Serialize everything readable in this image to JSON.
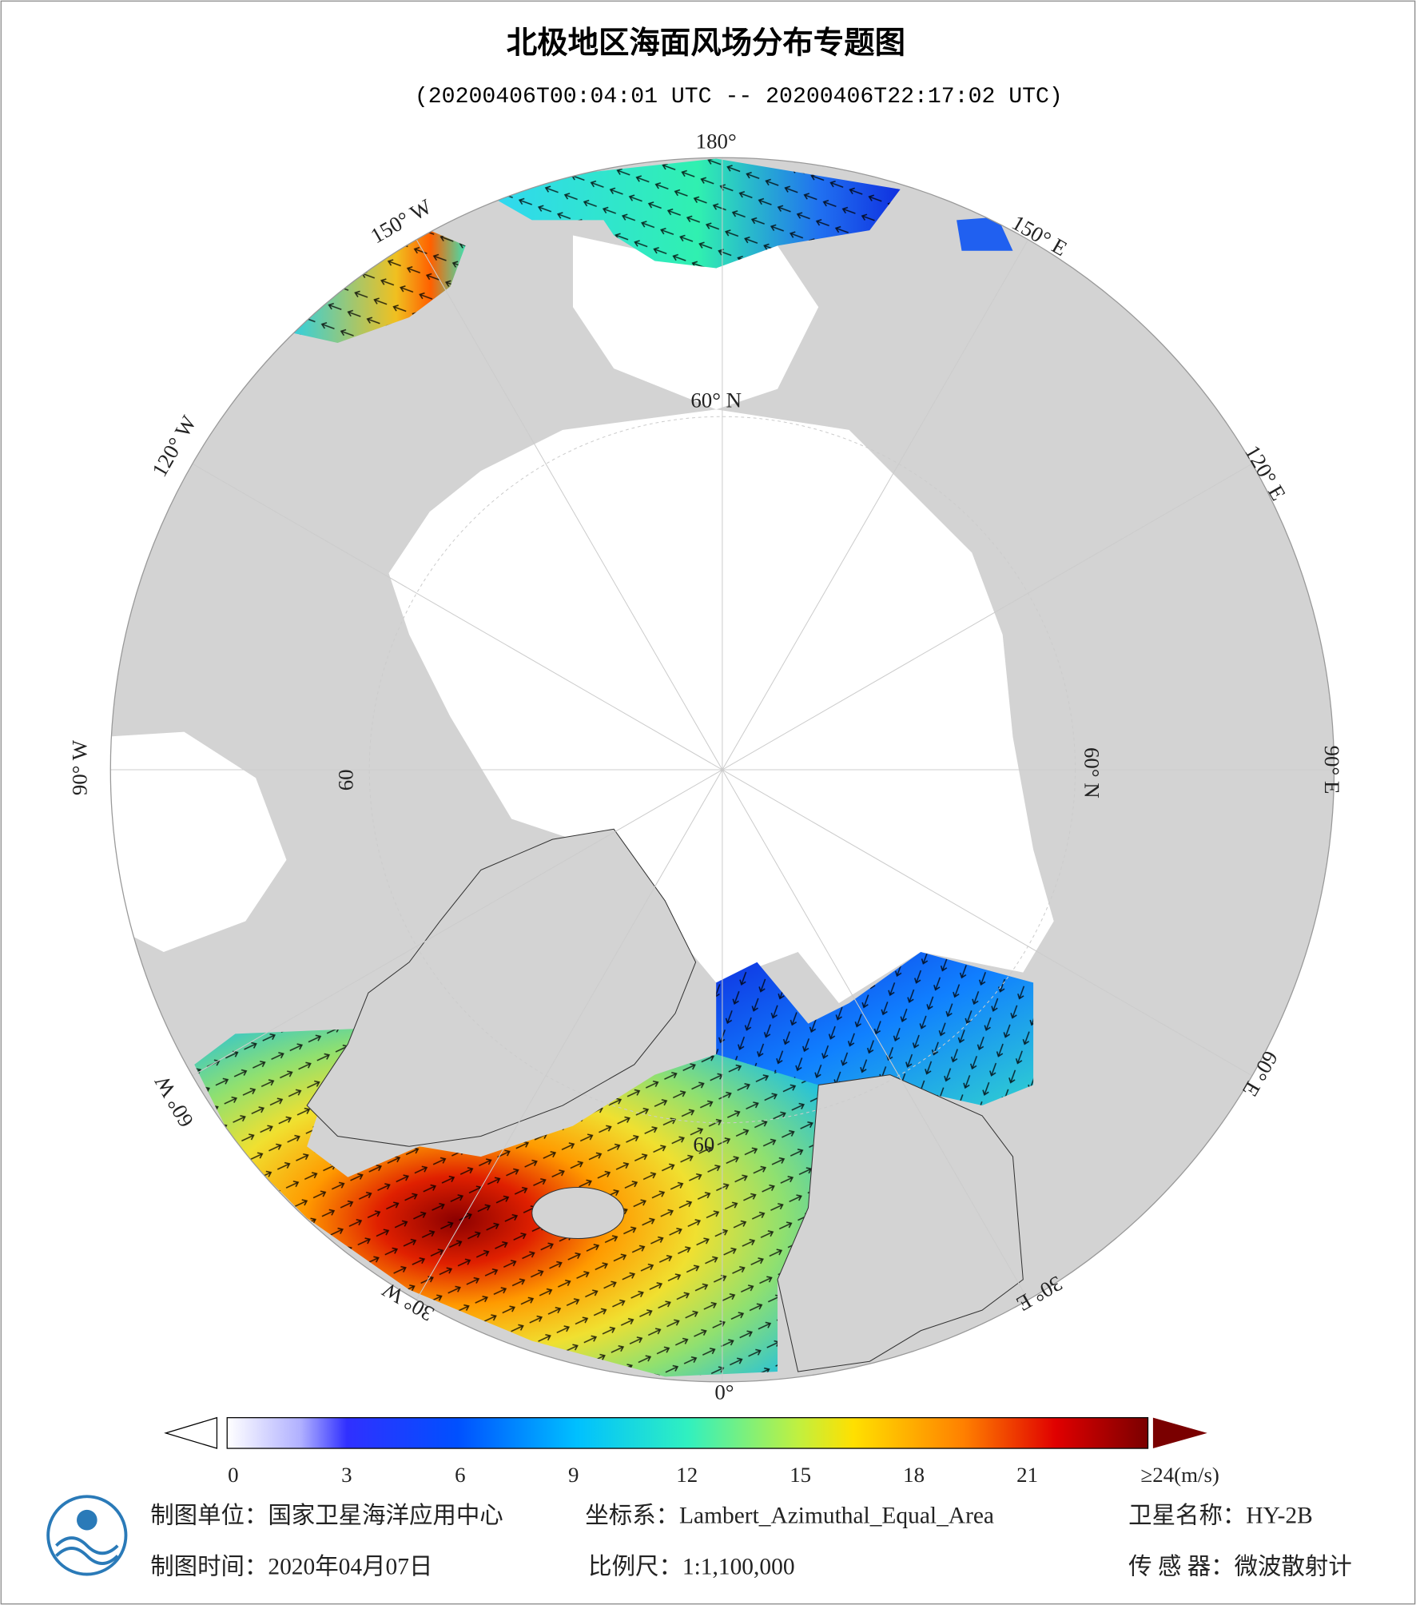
{
  "header": {
    "title": "北极地区海面风场分布专题图",
    "subtitle": "(20200406T00:04:01 UTC -- 20200406T22:17:02 UTC)"
  },
  "graticule": {
    "longitude_labels": [
      "180°",
      "150° E",
      "120° E",
      "90° E",
      "60° E",
      "30° E",
      "0°",
      "30° W",
      "60° W",
      "90° W",
      "120° W",
      "150° W"
    ],
    "latitude_labels": [
      "60° N",
      "60° N",
      "60",
      "60"
    ]
  },
  "colorbar": {
    "range": [
      0,
      24
    ],
    "ticks": [
      0,
      3,
      6,
      9,
      12,
      15,
      18,
      21,
      {
        "value": 24,
        "label": "≥24(m/s)"
      }
    ]
  },
  "footer": {
    "unit": "制图单位：国家卫星海洋应用中心",
    "coordinate_system": "坐标系：Lambert_Azimuthal_Equal_Area",
    "satellite": "卫星名称：HY-2B",
    "date": "制图时间：2020年04月07日",
    "scale": "比例尺：1:1,100,000",
    "sensor": "传 感 器：微波散射计"
  }
}
